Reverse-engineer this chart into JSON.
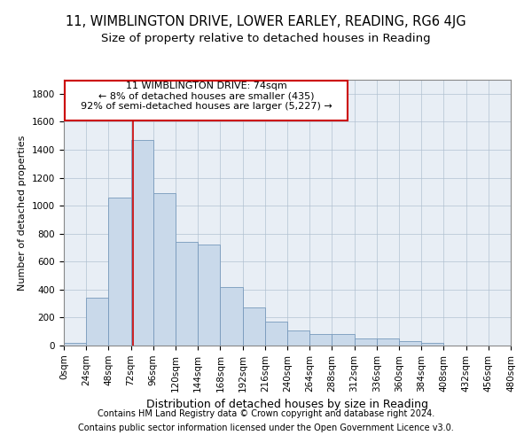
{
  "title_line1": "11, WIMBLINGTON DRIVE, LOWER EARLEY, READING, RG6 4JG",
  "title_line2": "Size of property relative to detached houses in Reading",
  "xlabel": "Distribution of detached houses by size in Reading",
  "ylabel": "Number of detached properties",
  "bar_color": "#c9d9ea",
  "bar_edge_color": "#7799bb",
  "background_color": "#ffffff",
  "axes_background": "#e8eef5",
  "grid_color": "#b0c0d0",
  "annotation_box_color": "#cc0000",
  "annotation_text_line1": "11 WIMBLINGTON DRIVE: 74sqm",
  "annotation_text_line2": "← 8% of detached houses are smaller (435)",
  "annotation_text_line3": "92% of semi-detached houses are larger (5,227) →",
  "property_line_x": 74,
  "bin_width": 24,
  "bins_start": 0,
  "bar_heights": [
    20,
    340,
    1060,
    1470,
    1090,
    740,
    720,
    420,
    270,
    170,
    110,
    80,
    80,
    50,
    50,
    30,
    20,
    0,
    0,
    0
  ],
  "xlim": [
    0,
    480
  ],
  "ylim": [
    0,
    1900
  ],
  "yticks": [
    0,
    200,
    400,
    600,
    800,
    1000,
    1200,
    1400,
    1600,
    1800
  ],
  "xtick_labels": [
    "0sqm",
    "24sqm",
    "48sqm",
    "72sqm",
    "96sqm",
    "120sqm",
    "144sqm",
    "168sqm",
    "192sqm",
    "216sqm",
    "240sqm",
    "264sqm",
    "288sqm",
    "312sqm",
    "336sqm",
    "360sqm",
    "384sqm",
    "408sqm",
    "432sqm",
    "456sqm",
    "480sqm"
  ],
  "footer_line1": "Contains HM Land Registry data © Crown copyright and database right 2024.",
  "footer_line2": "Contains public sector information licensed under the Open Government Licence v3.0.",
  "title_fontsize": 10.5,
  "subtitle_fontsize": 9.5,
  "xlabel_fontsize": 9,
  "ylabel_fontsize": 8,
  "tick_fontsize": 7.5,
  "footer_fontsize": 7,
  "annotation_fontsize": 8
}
